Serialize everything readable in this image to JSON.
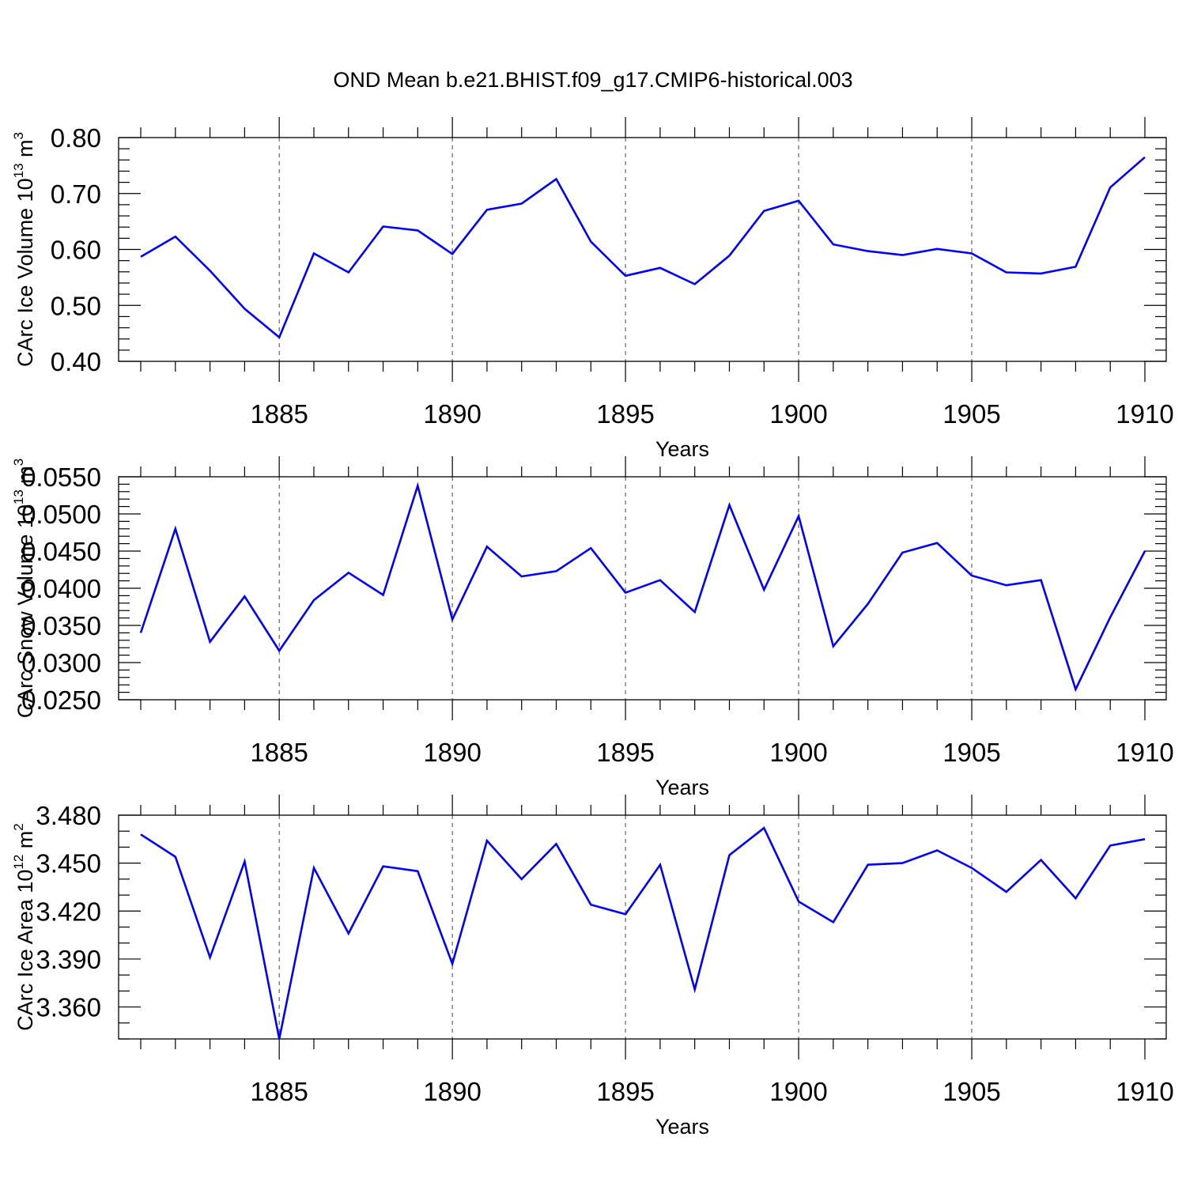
{
  "title": "OND Mean b.e21.BHIST.f09_g17.CMIP6-historical.003",
  "colors": {
    "line": "#0000ff",
    "axis": "#000000",
    "background": "#ffffff"
  },
  "chart_data": [
    {
      "type": "line",
      "ylabel": "CArc Ice Volume 10",
      "ylabel_units": [
        {
          "text": "13",
          "sup": true
        },
        {
          "text": " m",
          "sup": false
        },
        {
          "text": "3",
          "sup": true
        }
      ],
      "xlabel": "Years",
      "xlim": [
        1881,
        1910
      ],
      "ylim": [
        0.4,
        0.8
      ],
      "xticks": [
        1885,
        1890,
        1895,
        1900,
        1905,
        1910
      ],
      "yticks": [
        0.4,
        0.5,
        0.6,
        0.7,
        0.8
      ],
      "ytick_labels": [
        "0.40",
        "0.50",
        "0.60",
        "0.70",
        "0.80"
      ],
      "y_minor_count": 4,
      "grid": "dashed vertical at major x ticks",
      "x": [
        1881,
        1882,
        1883,
        1884,
        1885,
        1886,
        1887,
        1888,
        1889,
        1890,
        1891,
        1892,
        1893,
        1894,
        1895,
        1896,
        1897,
        1898,
        1899,
        1900,
        1901,
        1902,
        1903,
        1904,
        1905,
        1906,
        1907,
        1908,
        1909,
        1910
      ],
      "values": [
        0.587,
        0.623,
        0.562,
        0.494,
        0.443,
        0.593,
        0.559,
        0.641,
        0.634,
        0.592,
        0.671,
        0.682,
        0.726,
        0.614,
        0.553,
        0.567,
        0.538,
        0.589,
        0.669,
        0.687,
        0.609,
        0.597,
        0.59,
        0.601,
        0.593,
        0.559,
        0.557,
        0.569,
        0.711,
        0.765
      ]
    },
    {
      "type": "line",
      "ylabel": "CArc Snow Volume 10",
      "ylabel_units": [
        {
          "text": "13",
          "sup": true
        },
        {
          "text": " m",
          "sup": false
        },
        {
          "text": "3",
          "sup": true
        }
      ],
      "xlabel": "Years",
      "xlim": [
        1881,
        1910
      ],
      "ylim": [
        0.025,
        0.055
      ],
      "xticks": [
        1885,
        1890,
        1895,
        1900,
        1905,
        1910
      ],
      "yticks": [
        0.025,
        0.03,
        0.035,
        0.04,
        0.045,
        0.05,
        0.055
      ],
      "ytick_labels": [
        "0.0250",
        "0.0300",
        "0.0350",
        "0.0400",
        "0.0450",
        "0.0500",
        "0.0550"
      ],
      "y_minor_count": 4,
      "grid": "dashed vertical at major x ticks",
      "x": [
        1881,
        1882,
        1883,
        1884,
        1885,
        1886,
        1887,
        1888,
        1889,
        1890,
        1891,
        1892,
        1893,
        1894,
        1895,
        1896,
        1897,
        1898,
        1899,
        1900,
        1901,
        1902,
        1903,
        1904,
        1905,
        1906,
        1907,
        1908,
        1909,
        1910
      ],
      "values": [
        0.034,
        0.048,
        0.0328,
        0.0389,
        0.0316,
        0.0384,
        0.0421,
        0.0391,
        0.0538,
        0.0358,
        0.0456,
        0.0416,
        0.0423,
        0.0454,
        0.0394,
        0.0411,
        0.0368,
        0.0512,
        0.0398,
        0.0497,
        0.0322,
        0.0379,
        0.0448,
        0.0461,
        0.0417,
        0.0404,
        0.0411,
        0.0264,
        0.0361,
        0.045
      ]
    },
    {
      "type": "line",
      "ylabel": "CArc Ice Area 10",
      "ylabel_units": [
        {
          "text": "12",
          "sup": true
        },
        {
          "text": " m",
          "sup": false
        },
        {
          "text": "2",
          "sup": true
        }
      ],
      "xlabel": "Years",
      "xlim": [
        1881,
        1910
      ],
      "ylim": [
        3.34,
        3.48
      ],
      "xticks": [
        1885,
        1890,
        1895,
        1900,
        1905,
        1910
      ],
      "yticks": [
        3.36,
        3.39,
        3.42,
        3.45,
        3.48
      ],
      "ytick_labels": [
        "3.360",
        "3.390",
        "3.420",
        "3.450",
        "3.480"
      ],
      "y_minor_count": 2,
      "grid": "dashed vertical at major x ticks",
      "x": [
        1881,
        1882,
        1883,
        1884,
        1885,
        1886,
        1887,
        1888,
        1889,
        1890,
        1891,
        1892,
        1893,
        1894,
        1895,
        1896,
        1897,
        1898,
        1899,
        1900,
        1901,
        1902,
        1903,
        1904,
        1905,
        1906,
        1907,
        1908,
        1909,
        1910
      ],
      "values": [
        3.468,
        3.454,
        3.391,
        3.451,
        3.34,
        3.447,
        3.406,
        3.448,
        3.445,
        3.387,
        3.464,
        3.44,
        3.462,
        3.424,
        3.418,
        3.449,
        3.371,
        3.455,
        3.472,
        3.426,
        3.413,
        3.449,
        3.45,
        3.458,
        3.447,
        3.432,
        3.452,
        3.428,
        3.461,
        3.465
      ]
    }
  ]
}
